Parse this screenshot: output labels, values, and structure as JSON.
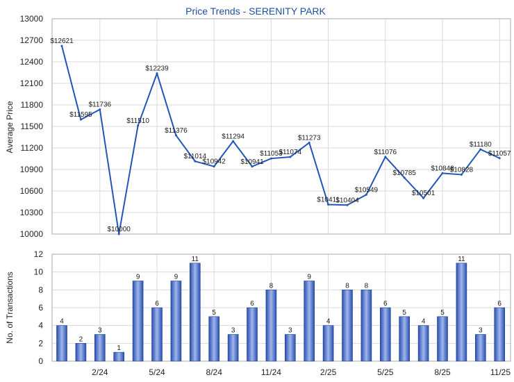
{
  "chart_data": [
    {
      "type": "line",
      "title": "Price Trends - SERENITY PARK",
      "ylabel": "Average Price",
      "ylim": [
        10000,
        13000
      ],
      "yticks": [
        10000,
        10300,
        10600,
        10900,
        11200,
        11500,
        11800,
        12100,
        12400,
        12700,
        13000
      ],
      "values": [
        12621,
        11595,
        11736,
        10000,
        11510,
        12239,
        11376,
        11014,
        10942,
        11294,
        10941,
        11053,
        11074,
        11273,
        10411,
        10404,
        10549,
        11076,
        10785,
        10501,
        10848,
        10828,
        11180,
        11057
      ],
      "labels": [
        "$12621",
        "$11595",
        "$11736",
        "$10000",
        "$11510",
        "$12239",
        "$11376",
        "$11014",
        "$10942",
        "$11294",
        "$10941",
        "$11053",
        "$11074",
        "$11273",
        "$10411",
        "$10404",
        "$10549",
        "$11076",
        "$10785",
        "$10501",
        "$10848",
        "$10828",
        "$11180",
        "$11057"
      ],
      "grid": true,
      "color": "#2255b8"
    },
    {
      "type": "bar",
      "ylabel": "No. of Transactions",
      "ylim": [
        0,
        12
      ],
      "yticks": [
        0,
        2,
        4,
        6,
        8,
        10,
        12
      ],
      "values": [
        4,
        2,
        3,
        1,
        9,
        6,
        9,
        11,
        5,
        3,
        6,
        8,
        3,
        9,
        4,
        8,
        8,
        6,
        5,
        4,
        5,
        11,
        3,
        6
      ],
      "labels": [
        "4",
        "2",
        "3",
        "1",
        "9",
        "6",
        "9",
        "11",
        "5",
        "3",
        "6",
        "8",
        "3",
        "9",
        "4",
        "8",
        "8",
        "6",
        "5",
        "4",
        "5",
        "11",
        "3",
        "6"
      ],
      "xticks": [
        {
          "index": 2,
          "label": "2/24"
        },
        {
          "index": 5,
          "label": "5/24"
        },
        {
          "index": 8,
          "label": "8/24"
        },
        {
          "index": 11,
          "label": "11/24"
        },
        {
          "index": 14,
          "label": "2/25"
        },
        {
          "index": 17,
          "label": "5/25"
        },
        {
          "index": 20,
          "label": "8/25"
        },
        {
          "index": 23,
          "label": "11/25"
        }
      ],
      "grid": true,
      "color": "#3b63c4"
    }
  ]
}
